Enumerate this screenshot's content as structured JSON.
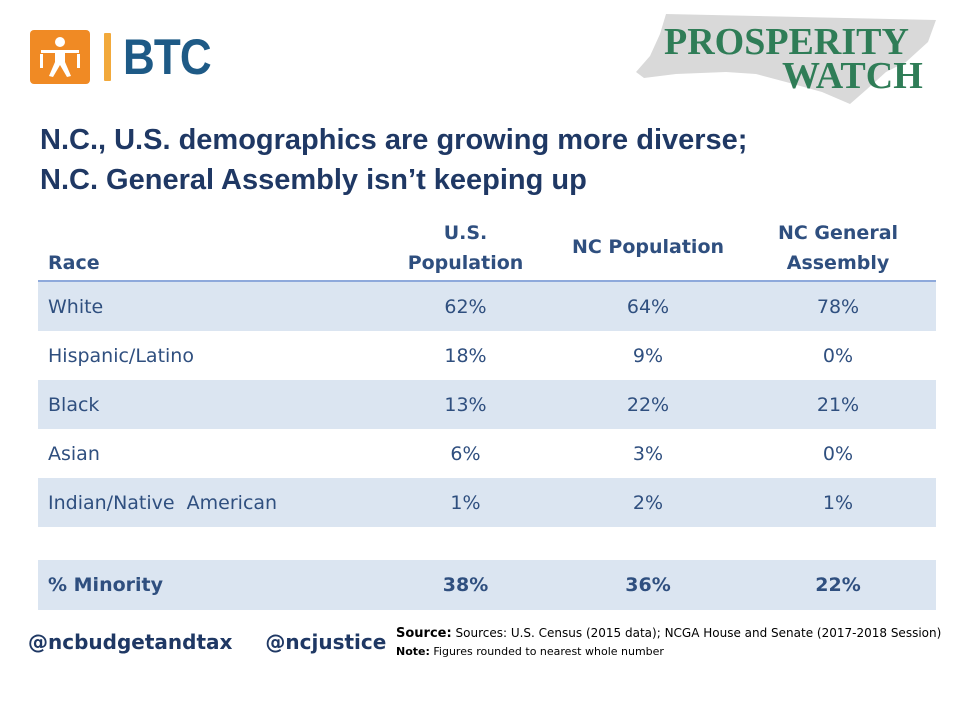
{
  "logo_btc": {
    "text": "BTC",
    "icon": "person-icon",
    "color": "#f08a24"
  },
  "logo_prosperity": {
    "line1": "PROSPERITY",
    "line2": "WATCH",
    "color": "#2f7d57"
  },
  "title": {
    "line1": "N.C., U.S. demographics are growing more diverse;",
    "line2": "N.C. General Assembly isn’t keeping up"
  },
  "table": {
    "headers": {
      "race": "Race",
      "us_line1": "U.S.",
      "us_line2": "Population",
      "nc": "NC Population",
      "ga_line1": "NC General",
      "ga_line2": "Assembly"
    },
    "rows": [
      {
        "label": "White",
        "us": "62%",
        "nc": "64%",
        "ga": "78%"
      },
      {
        "label": "Hispanic/Latino",
        "us": "18%",
        "nc": "9%",
        "ga": "0%"
      },
      {
        "label": "Black",
        "us": "13%",
        "nc": "22%",
        "ga": "21%"
      },
      {
        "label": "Asian",
        "us": "6%",
        "nc": "3%",
        "ga": "0%"
      },
      {
        "label": "Indian/Native  American",
        "us": "1%",
        "nc": "2%",
        "ga": "1%"
      }
    ],
    "total": {
      "label": "% Minority",
      "us": "38%",
      "nc": "36%",
      "ga": "22%"
    }
  },
  "footer": {
    "handle1": "@ncbudgetandtax",
    "handle2": "@ncjustice",
    "source_key": "Source:",
    "source_text": " Sources: U.S. Census (2015 data); NCGA House and Senate (2017-2018 Session)",
    "note_key": "Note:",
    "note_text": " Figures rounded to nearest whole number"
  }
}
